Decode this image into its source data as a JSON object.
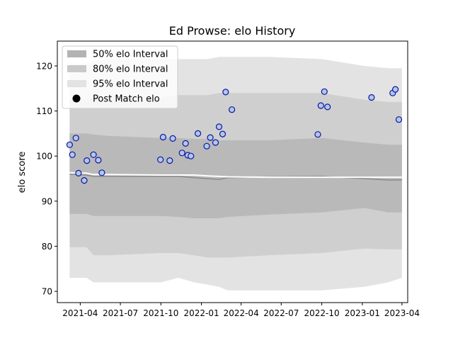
{
  "chart_data": {
    "type": "scatter",
    "title": "Ed Prowse: elo History",
    "xlabel": "",
    "ylabel": "elo score",
    "x_ticks": [
      "2021-04",
      "2021-07",
      "2021-10",
      "2022-01",
      "2022-04",
      "2022-07",
      "2022-10",
      "2023-01",
      "2023-04"
    ],
    "y_ticks": [
      70,
      80,
      90,
      100,
      110,
      120
    ],
    "xlim": [
      "2021-02-08",
      "2023-04-14"
    ],
    "ylim": [
      67.5,
      125.5
    ],
    "grid": false,
    "legend_position": "top-left",
    "legend": [
      {
        "label": "50% elo Interval",
        "color": "#b3b3b3",
        "kind": "patch"
      },
      {
        "label": "80% elo Interval",
        "color": "#c9c9c9",
        "kind": "patch"
      },
      {
        "label": "95% elo Interval",
        "color": "#e3e3e3",
        "kind": "patch"
      },
      {
        "label": "Post Match elo",
        "color": "#000000",
        "kind": "marker"
      }
    ],
    "colors": {
      "band95": "#e3e3e3",
      "band80": "#cfcfcf",
      "band50": "#b9b9b9",
      "median_line": "#ffffff",
      "marker_face": "#aec9e8",
      "marker_edge": "#1212a0"
    },
    "bands": {
      "x": [
        "2021-03-08",
        "2021-04-15",
        "2021-05-01",
        "2021-06-01",
        "2021-10-01",
        "2021-11-10",
        "2021-12-15",
        "2022-01-15",
        "2022-02-10",
        "2022-03-01",
        "2022-06-01",
        "2022-10-01",
        "2023-01-05",
        "2023-03-01",
        "2023-04-01"
      ],
      "p95_low": [
        73.0,
        73.0,
        72.0,
        72.0,
        72.0,
        73.0,
        72.0,
        71.5,
        71.0,
        70.2,
        70.2,
        70.2,
        71.0,
        72.0,
        73.0
      ],
      "p95_high": [
        120.5,
        120.5,
        121.0,
        121.5,
        121.5,
        121.5,
        121.5,
        121.5,
        122.0,
        122.0,
        122.0,
        121.5,
        120.0,
        119.5,
        119.5
      ],
      "p80_low": [
        79.8,
        79.8,
        78.0,
        78.0,
        78.5,
        78.5,
        78.0,
        77.5,
        77.5,
        77.5,
        78.0,
        78.5,
        79.5,
        79.3,
        79.3
      ],
      "p80_high": [
        112.5,
        112.5,
        113.0,
        113.0,
        113.0,
        113.5,
        113.5,
        113.5,
        114.0,
        114.0,
        114.0,
        114.0,
        112.5,
        112.0,
        112.0
      ],
      "p50_low": [
        87.2,
        87.2,
        86.7,
        86.7,
        86.7,
        86.5,
        86.2,
        86.2,
        86.2,
        86.5,
        87.0,
        87.5,
        88.5,
        87.5,
        87.5
      ],
      "p50_high": [
        105.0,
        105.0,
        104.8,
        104.5,
        104.0,
        104.0,
        103.8,
        103.8,
        103.5,
        103.5,
        103.5,
        104.0,
        103.0,
        102.5,
        102.5
      ],
      "median": [
        96.0,
        95.8,
        95.5,
        95.5,
        95.5,
        95.5,
        95.2,
        95.0,
        94.8,
        95.2,
        95.4,
        95.5,
        95.0,
        94.7,
        94.7
      ],
      "post_match_line": [
        96.3,
        96.2,
        95.9,
        95.9,
        95.8,
        95.8,
        95.8,
        95.6,
        95.5,
        95.4,
        95.3,
        95.3,
        95.3,
        95.3,
        95.3
      ]
    },
    "points": [
      {
        "x": "2021-03-08",
        "y": 102.5
      },
      {
        "x": "2021-03-14",
        "y": 100.3
      },
      {
        "x": "2021-03-22",
        "y": 104.0
      },
      {
        "x": "2021-03-28",
        "y": 96.2
      },
      {
        "x": "2021-04-10",
        "y": 94.6
      },
      {
        "x": "2021-04-16",
        "y": 99.0
      },
      {
        "x": "2021-05-01",
        "y": 100.3
      },
      {
        "x": "2021-05-12",
        "y": 99.1
      },
      {
        "x": "2021-05-20",
        "y": 96.3
      },
      {
        "x": "2021-09-30",
        "y": 99.2
      },
      {
        "x": "2021-10-06",
        "y": 104.2
      },
      {
        "x": "2021-10-21",
        "y": 99.0
      },
      {
        "x": "2021-10-28",
        "y": 103.9
      },
      {
        "x": "2021-11-18",
        "y": 100.7
      },
      {
        "x": "2021-11-26",
        "y": 102.8
      },
      {
        "x": "2021-12-01",
        "y": 100.2
      },
      {
        "x": "2021-12-08",
        "y": 100.0
      },
      {
        "x": "2021-12-24",
        "y": 105.0
      },
      {
        "x": "2022-01-13",
        "y": 102.2
      },
      {
        "x": "2022-01-21",
        "y": 104.1
      },
      {
        "x": "2022-02-02",
        "y": 103.0
      },
      {
        "x": "2022-02-10",
        "y": 106.5
      },
      {
        "x": "2022-02-18",
        "y": 104.9
      },
      {
        "x": "2022-02-25",
        "y": 114.2
      },
      {
        "x": "2022-03-11",
        "y": 110.3
      },
      {
        "x": "2022-09-22",
        "y": 104.8
      },
      {
        "x": "2022-09-29",
        "y": 111.2
      },
      {
        "x": "2022-10-07",
        "y": 114.3
      },
      {
        "x": "2022-10-14",
        "y": 110.9
      },
      {
        "x": "2023-01-22",
        "y": 113.0
      },
      {
        "x": "2023-03-11",
        "y": 114.0
      },
      {
        "x": "2023-03-17",
        "y": 114.8
      },
      {
        "x": "2023-03-25",
        "y": 108.1
      }
    ]
  }
}
